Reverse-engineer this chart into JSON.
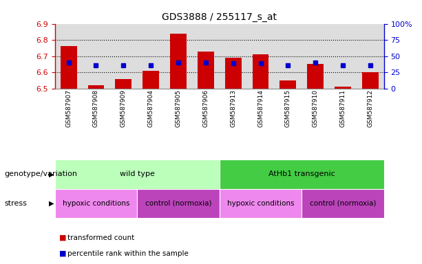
{
  "title": "GDS3888 / 255117_s_at",
  "samples": [
    "GSM587907",
    "GSM587908",
    "GSM587909",
    "GSM587904",
    "GSM587905",
    "GSM587906",
    "GSM587913",
    "GSM587914",
    "GSM587915",
    "GSM587910",
    "GSM587911",
    "GSM587912"
  ],
  "bar_top": [
    6.76,
    6.52,
    6.56,
    6.61,
    6.84,
    6.73,
    6.69,
    6.71,
    6.55,
    6.65,
    6.51,
    6.6
  ],
  "bar_bottom": 6.5,
  "blue_dot_y": [
    6.66,
    6.645,
    6.645,
    6.645,
    6.66,
    6.66,
    6.655,
    6.655,
    6.645,
    6.66,
    6.645,
    6.645
  ],
  "ylim": [
    6.5,
    6.9
  ],
  "yticks_left": [
    6.5,
    6.6,
    6.7,
    6.8,
    6.9
  ],
  "ytick_right_labels": [
    "0",
    "25",
    "50",
    "75",
    "100%"
  ],
  "bar_color": "#cc0000",
  "dot_color": "#0000cc",
  "genotype_groups": [
    {
      "label": "wild type",
      "start": 0,
      "end": 6,
      "color": "#bbffbb"
    },
    {
      "label": "AtHb1 transgenic",
      "start": 6,
      "end": 12,
      "color": "#44cc44"
    }
  ],
  "stress_groups": [
    {
      "label": "hypoxic conditions",
      "start": 0,
      "end": 3,
      "color": "#ee88ee"
    },
    {
      "label": "control (normoxia)",
      "start": 3,
      "end": 6,
      "color": "#bb44bb"
    },
    {
      "label": "hypoxic conditions",
      "start": 6,
      "end": 9,
      "color": "#ee88ee"
    },
    {
      "label": "control (normoxia)",
      "start": 9,
      "end": 12,
      "color": "#bb44bb"
    }
  ],
  "legend_items": [
    {
      "label": "transformed count",
      "color": "#cc0000"
    },
    {
      "label": "percentile rank within the sample",
      "color": "#0000cc"
    }
  ],
  "left_label_geno": "genotype/variation",
  "left_label_stress": "stress",
  "axis_left_color": "#cc0000",
  "axis_right_color": "#0000cc",
  "bg_color": "#ffffff",
  "plot_bg_color": "#dddddd",
  "tick_label_bg": "#cccccc"
}
